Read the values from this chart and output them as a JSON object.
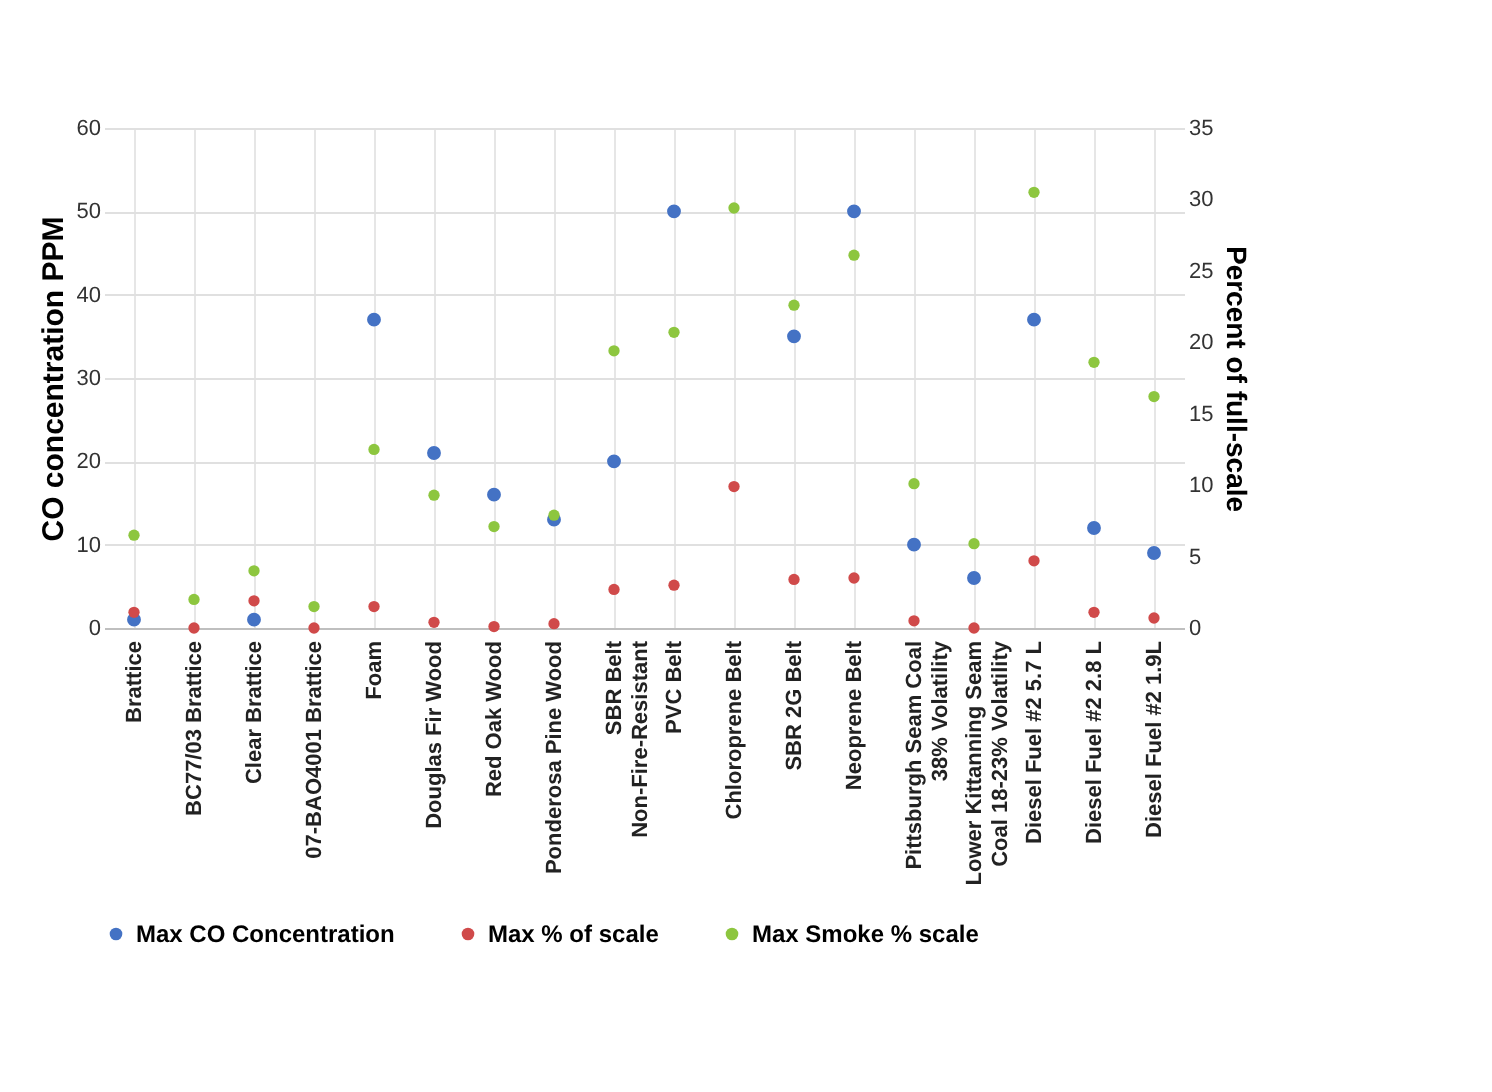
{
  "chart_data": {
    "type": "scatter",
    "xlabel": null,
    "ylabel": "CO concentration PPM",
    "y2label": "Percent of full-scale",
    "categories": [
      "Brattice",
      "BC77/03 Brattice",
      "Clear Brattice",
      "07-BAO4001 Brattice",
      "Foam",
      "Douglas Fir Wood",
      "Red Oak Wood",
      "Ponderosa Pine Wood",
      "SBR Belt Non-Fire-Resistant",
      "PVC Belt",
      "Chloroprene Belt",
      "SBR 2G Belt",
      "Neoprene Belt",
      "Pittsburgh Seam Coal 38% Volatility",
      "Lower Kittanning Seam Coal 18-23% Volatility",
      "Diesel Fuel #2 5.7 L",
      "Diesel Fuel #2 2.8 L",
      "Diesel Fuel #2 1.9L"
    ],
    "series": [
      {
        "name": "Max CO Concentration",
        "color": "#4472c4",
        "values": [
          1,
          null,
          1,
          null,
          37,
          21,
          16,
          13,
          20,
          50,
          null,
          35,
          50,
          10,
          6,
          37,
          12,
          9
        ]
      },
      {
        "name": "Max % of scale",
        "color": "#d04a4a",
        "axis": "y2",
        "values": [
          1.1,
          0,
          1.9,
          0,
          1.5,
          0.4,
          0.1,
          0.3,
          2.7,
          3.0,
          9.9,
          3.4,
          3.5,
          0.5,
          0,
          4.7,
          1.1,
          0.7
        ]
      },
      {
        "name": "Max Smoke % scale",
        "color": "#8dc63f",
        "axis": "y2",
        "values": [
          6.5,
          2.0,
          4.0,
          1.5,
          12.5,
          9.3,
          7.1,
          7.9,
          19.4,
          20.7,
          29.4,
          22.6,
          26.1,
          10.1,
          5.9,
          30.5,
          18.6,
          16.2
        ]
      }
    ],
    "ylim": [
      0,
      60
    ],
    "yticks": [
      0,
      10,
      20,
      30,
      40,
      50,
      60
    ],
    "y2lim": [
      0,
      35
    ],
    "y2ticks": [
      0,
      5,
      10,
      15,
      20,
      25,
      30,
      35
    ],
    "grid": true,
    "legend": "bottom",
    "marker": "circle"
  }
}
